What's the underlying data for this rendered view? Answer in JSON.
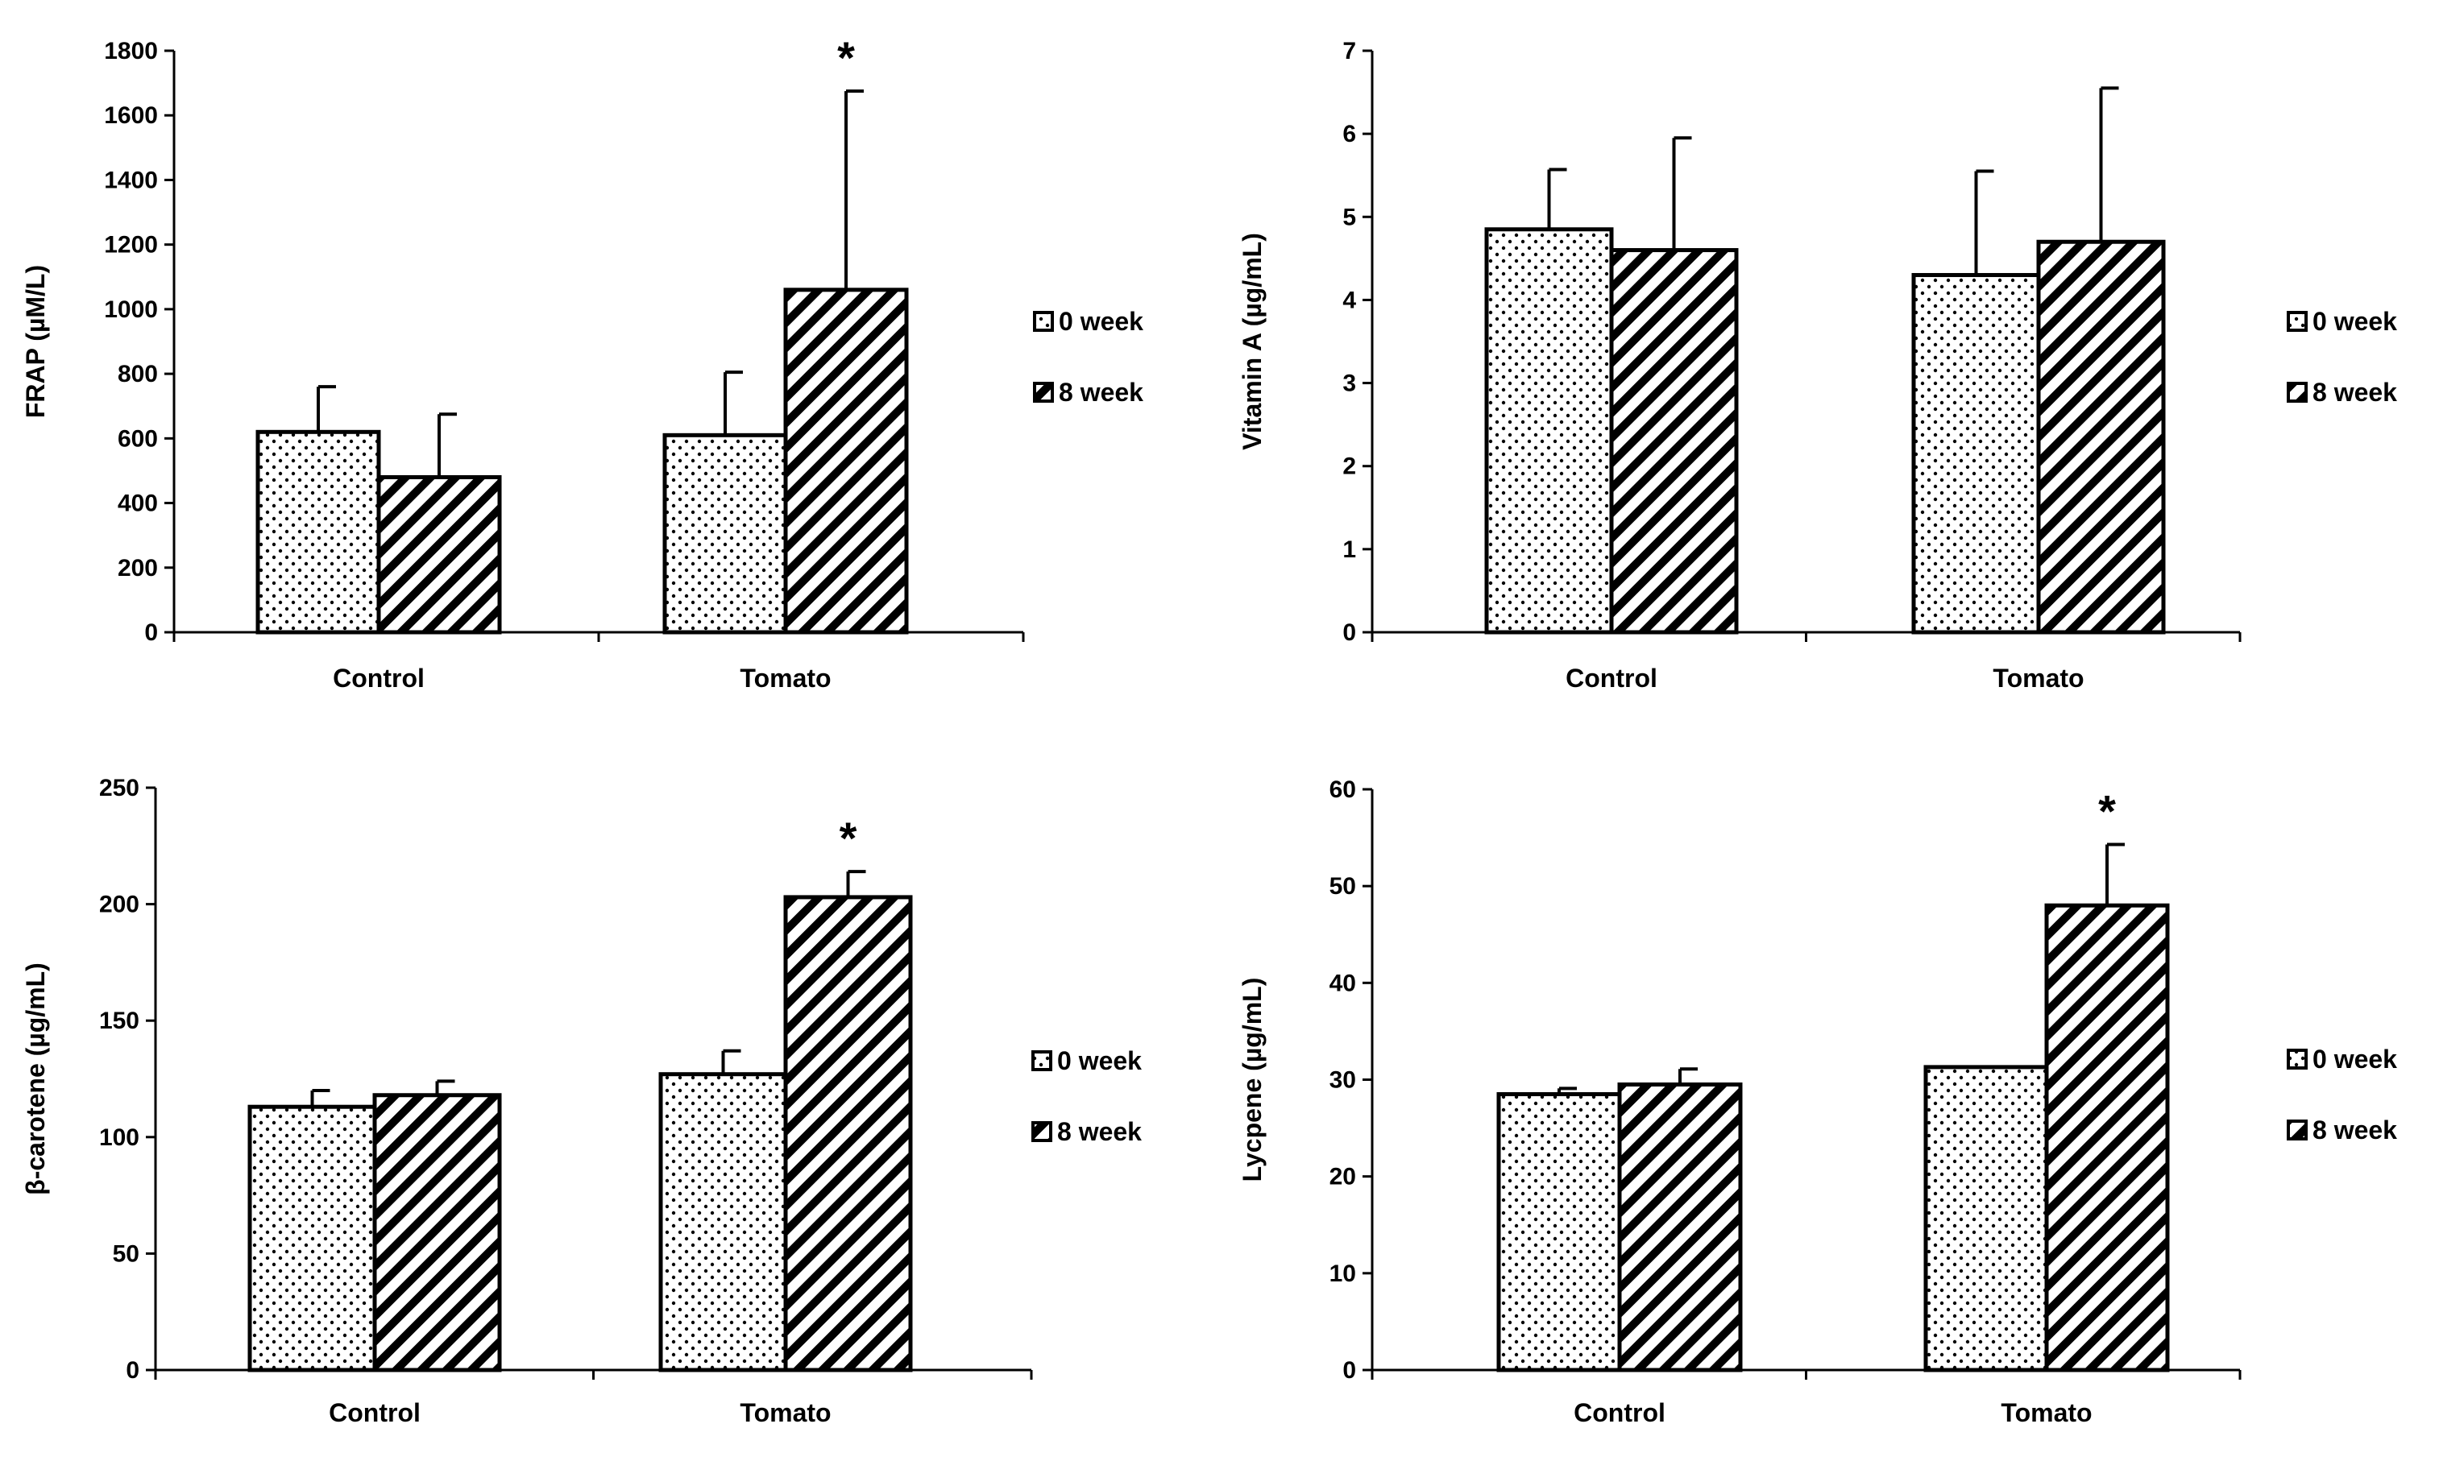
{
  "legend": {
    "series0": "0 week",
    "series1": "8 week"
  },
  "chart_data": [
    {
      "type": "bar",
      "id": "frap",
      "title": "",
      "ylabel": "FRAP (µM/L)",
      "xlabel": "",
      "categories": [
        "Control",
        "Tomato"
      ],
      "series": [
        {
          "name": "0 week",
          "values": [
            620,
            610
          ],
          "errors": [
            140,
            195
          ]
        },
        {
          "name": "8 week",
          "values": [
            480,
            1060
          ],
          "errors": [
            195,
            615
          ]
        }
      ],
      "ylim": [
        0,
        1800
      ],
      "yticks": [
        0,
        200,
        400,
        600,
        800,
        1000,
        1200,
        1400,
        1600,
        1800
      ],
      "annotations": [
        {
          "text": "*",
          "category": "Tomato",
          "series": "8 week"
        }
      ],
      "legend_position": "right"
    },
    {
      "type": "bar",
      "id": "vitamin-a",
      "title": "",
      "ylabel": "Vitamin A (µg/mL)",
      "xlabel": "",
      "categories": [
        "Control",
        "Tomato"
      ],
      "series": [
        {
          "name": "0 week",
          "values": [
            4.85,
            4.3
          ],
          "errors": [
            0.72,
            1.25
          ]
        },
        {
          "name": "8 week",
          "values": [
            4.6,
            4.7
          ],
          "errors": [
            1.35,
            1.85
          ]
        }
      ],
      "ylim": [
        0,
        7
      ],
      "yticks": [
        0,
        1,
        2,
        3,
        4,
        5,
        6,
        7
      ],
      "annotations": [],
      "legend_position": "right"
    },
    {
      "type": "bar",
      "id": "beta-carotene",
      "title": "",
      "ylabel": "β-carotene (µg/mL)",
      "xlabel": "",
      "categories": [
        "Control",
        "Tomato"
      ],
      "series": [
        {
          "name": "0 week",
          "values": [
            113,
            127
          ],
          "errors": [
            7,
            10
          ]
        },
        {
          "name": "8 week",
          "values": [
            118,
            203
          ],
          "errors": [
            6,
            11
          ]
        }
      ],
      "ylim": [
        0,
        250
      ],
      "yticks": [
        0,
        50,
        100,
        150,
        200,
        250
      ],
      "annotations": [
        {
          "text": "*",
          "category": "Tomato",
          "series": "8 week"
        }
      ],
      "legend_position": "right"
    },
    {
      "type": "bar",
      "id": "lycopene",
      "title": "",
      "ylabel": "Lycpene (µg/mL)",
      "xlabel": "",
      "categories": [
        "Control",
        "Tomato"
      ],
      "series": [
        {
          "name": "0 week",
          "values": [
            28.5,
            31.3
          ],
          "errors": [
            0.6,
            0
          ]
        },
        {
          "name": "8 week",
          "values": [
            29.5,
            48
          ],
          "errors": [
            1.6,
            6.3
          ]
        }
      ],
      "ylim": [
        0,
        60
      ],
      "yticks": [
        0,
        10,
        20,
        30,
        40,
        50,
        60
      ],
      "annotations": [
        {
          "text": "*",
          "category": "Tomato",
          "series": "8 week"
        }
      ],
      "legend_position": "right"
    }
  ]
}
